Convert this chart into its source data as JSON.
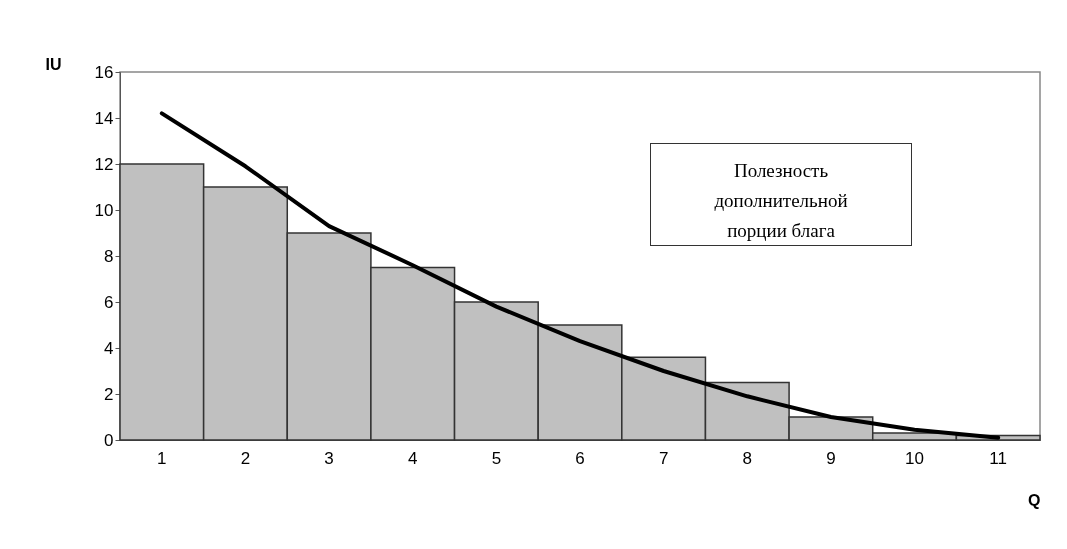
{
  "chart_data": {
    "type": "bar",
    "xlabel": "Q",
    "ylabel": "IU",
    "categories": [
      "1",
      "2",
      "3",
      "4",
      "5",
      "6",
      "7",
      "8",
      "9",
      "10",
      "11"
    ],
    "series": [
      {
        "color": "#c0c0c0",
        "values": [
          12,
          11,
          9,
          7.5,
          6,
          5,
          3.6,
          2.5,
          1,
          0.3,
          0.2
        ]
      },
      {
        "type": "line",
        "color": "#000000",
        "values": [
          14.2,
          11.9,
          9.3,
          7.6,
          5.8,
          4.3,
          3.0,
          1.9,
          1.0,
          0.45,
          0.1
        ]
      }
    ],
    "ylim": [
      0,
      16
    ],
    "yticks": [
      0,
      2,
      4,
      6,
      8,
      10,
      12,
      14,
      16
    ],
    "grid": false,
    "line_style": "solid",
    "annotations": [
      "Полезность дополнительной порции блага"
    ]
  }
}
